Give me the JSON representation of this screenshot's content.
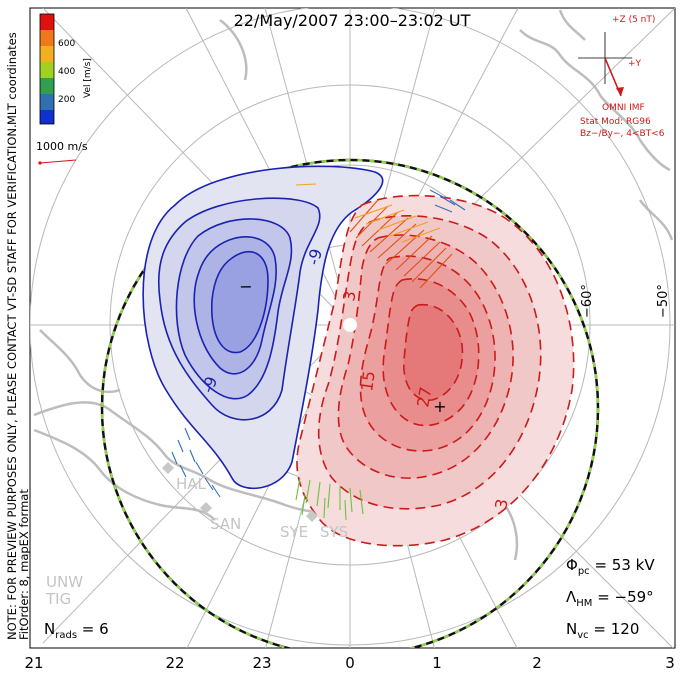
{
  "title": "22/May/2007 23:00–23:02 UT",
  "colorbar": {
    "label": "Vel [m/s]",
    "ticks": [
      "600",
      "400",
      "200"
    ],
    "colors": [
      "#e01010",
      "#f07818",
      "#f0b020",
      "#a0d020",
      "#30a050",
      "#3070b0",
      "#1030d0"
    ]
  },
  "coords_label": "MLT coordinates",
  "note_line1": "NOTE: FOR PREVIEW PURPOSES ONLY, PLEASE CONTACT VT-SD STAFF FOR VERIFICATION.",
  "note_line2": "FitOrder: 8, mapEX format",
  "scale_label": "1000 m/s",
  "imf": {
    "bz_label": "+Z (5 nT)",
    "by_label": "+Y",
    "source": "OMNI IMF",
    "stat_mod": "Stat Mod: RG96",
    "condition": "Bz−/By−, 4<BT<6"
  },
  "lat_labels": [
    "−60°",
    "−50°"
  ],
  "mlt_labels": [
    "21",
    "22",
    "23",
    "0",
    "1",
    "2",
    "3"
  ],
  "contour_labels": [
    "-9",
    "-9",
    "3",
    "15",
    "27",
    "3"
  ],
  "min_marker": "−",
  "max_marker": "+",
  "stations": [
    "HAL",
    "SAN",
    "SYE",
    "SYS",
    "UNW",
    "TIG"
  ],
  "stats": {
    "phi_pc": "Φpc = 53 kV",
    "lambda_hm": "ΛHM = −59°",
    "n_vc": "Nvc = 120",
    "n_rads": "Nrads = 6"
  },
  "colors": {
    "negative_contour": "#1a22b0",
    "positive_contour": "#cc1a1a",
    "imf_vector": "#d01818"
  }
}
